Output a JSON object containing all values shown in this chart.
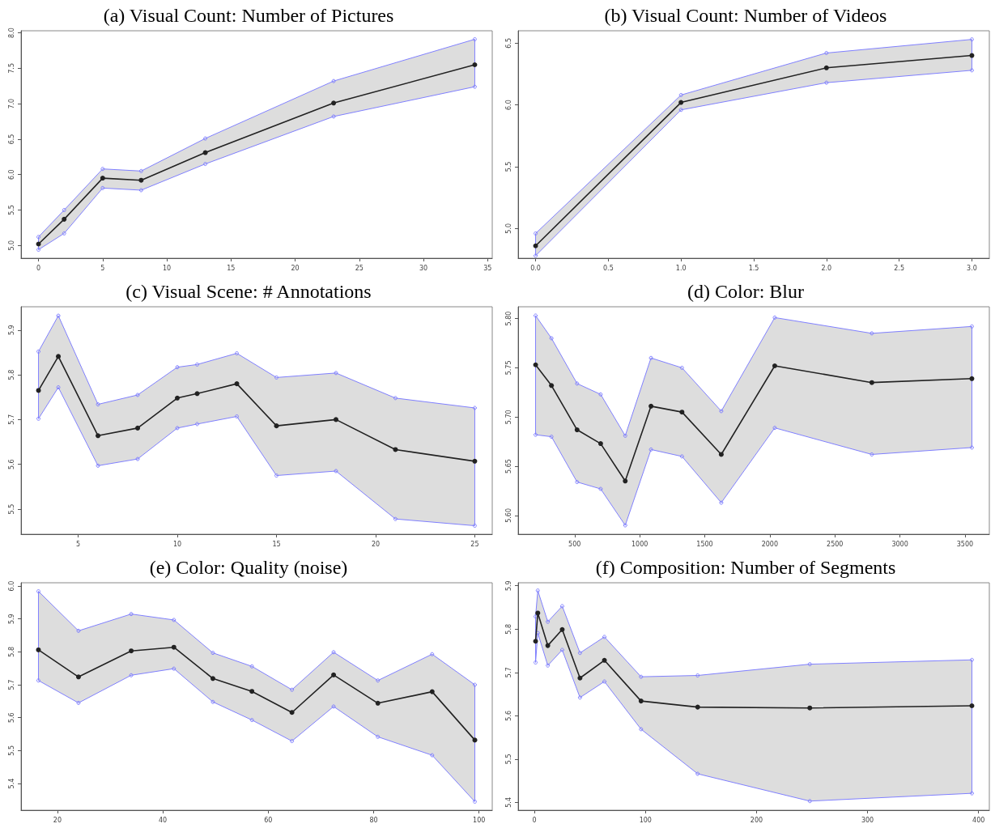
{
  "chart_data": [
    {
      "type": "line",
      "title": "(a) Visual Count: Number of Pictures",
      "x": [
        0,
        2,
        5,
        8,
        13,
        23,
        34
      ],
      "xlim": [
        -1.36,
        35.36
      ],
      "xticks": [
        0,
        5,
        10,
        15,
        20,
        25,
        30,
        35
      ],
      "ylim": [
        4.82,
        8.03
      ],
      "yticks": [
        {
          "value": 5,
          "label": "5.0"
        },
        {
          "value": 5.5,
          "label": "5.5"
        },
        {
          "value": 6,
          "label": "6.0"
        },
        {
          "value": 6.5,
          "label": "6.5"
        },
        {
          "value": 7,
          "label": "7.0"
        },
        {
          "value": 7.5,
          "label": "7.5"
        },
        {
          "value": 8,
          "label": "8.0"
        }
      ],
      "grid": false,
      "marker": "circle",
      "line_style": "solid",
      "series": [
        {
          "color": "#222222",
          "values": [
            5.02,
            5.37,
            5.95,
            5.92,
            6.31,
            7.01,
            7.55
          ],
          "lower": [
            4.94,
            5.17,
            5.81,
            5.78,
            6.15,
            6.82,
            7.24
          ],
          "upper": [
            5.12,
            5.5,
            6.08,
            6.05,
            6.51,
            7.32,
            7.91
          ]
        }
      ]
    },
    {
      "type": "line",
      "title": "(b) Visual Count: Number of Videos",
      "x": [
        0,
        1,
        2,
        3
      ],
      "xlim": [
        -0.12,
        3.12
      ],
      "xticks": [
        {
          "value": 0,
          "label": "0.0"
        },
        {
          "value": 0.5,
          "label": "0.5"
        },
        {
          "value": 1,
          "label": "1.0"
        },
        {
          "value": 1.5,
          "label": "1.5"
        },
        {
          "value": 2,
          "label": "2.0"
        },
        {
          "value": 2.5,
          "label": "2.5"
        },
        {
          "value": 3,
          "label": "3.0"
        }
      ],
      "ylim": [
        4.76,
        6.6
      ],
      "yticks": [
        {
          "value": 5,
          "label": "5.0"
        },
        {
          "value": 5.5,
          "label": "5.5"
        },
        {
          "value": 6,
          "label": "6.0"
        },
        {
          "value": 6.5,
          "label": "6.5"
        }
      ],
      "grid": false,
      "marker": "circle",
      "line_style": "solid",
      "series": [
        {
          "color": "#222222",
          "values": [
            4.86,
            6.02,
            6.3,
            6.4
          ],
          "lower": [
            4.78,
            5.96,
            6.18,
            6.28
          ],
          "upper": [
            4.96,
            6.08,
            6.42,
            6.53
          ]
        }
      ]
    },
    {
      "type": "line",
      "title": "(c) Visual Scene: # Annotations",
      "x": [
        3,
        4,
        6,
        8,
        10,
        11,
        13,
        15,
        18,
        21,
        25
      ],
      "xlim": [
        2.12,
        25.88
      ],
      "xticks": [
        5,
        10,
        15,
        20,
        25
      ],
      "ylim": [
        5.444,
        5.952
      ],
      "yticks": [
        5.5,
        5.6,
        5.7,
        5.8,
        5.9
      ],
      "grid": false,
      "marker": "circle",
      "line_style": "solid",
      "series": [
        {
          "color": "#222222",
          "values": [
            5.765,
            5.841,
            5.664,
            5.681,
            5.748,
            5.758,
            5.78,
            5.686,
            5.7,
            5.633,
            5.607
          ],
          "lower": [
            5.702,
            5.772,
            5.597,
            5.612,
            5.681,
            5.69,
            5.707,
            5.575,
            5.585,
            5.478,
            5.463
          ],
          "upper": [
            5.852,
            5.932,
            5.734,
            5.755,
            5.817,
            5.823,
            5.848,
            5.794,
            5.804,
            5.748,
            5.726
          ]
        }
      ]
    },
    {
      "type": "line",
      "title": "(d) Color: Blur",
      "x": [
        200,
        322,
        519,
        700,
        889,
        1087,
        1325,
        1627,
        2038,
        2784,
        3553
      ],
      "xlim": [
        66,
        3687
      ],
      "xticks": [
        500,
        1000,
        1500,
        2000,
        2500,
        3000,
        3500
      ],
      "ylim": [
        5.581,
        5.812
      ],
      "yticks": [
        {
          "value": 5.6,
          "label": "5.60"
        },
        {
          "value": 5.65,
          "label": "5.65"
        },
        {
          "value": 5.7,
          "label": "5.70"
        },
        {
          "value": 5.75,
          "label": "5.75"
        },
        {
          "value": 5.8,
          "label": "5.80"
        }
      ],
      "grid": false,
      "marker": "circle",
      "line_style": "solid",
      "series": [
        {
          "color": "#222222",
          "values": [
            5.753,
            5.732,
            5.687,
            5.673,
            5.635,
            5.711,
            5.705,
            5.662,
            5.752,
            5.735,
            5.739
          ],
          "lower": [
            5.682,
            5.68,
            5.634,
            5.627,
            5.59,
            5.667,
            5.66,
            5.613,
            5.689,
            5.662,
            5.669
          ],
          "upper": [
            5.803,
            5.78,
            5.734,
            5.723,
            5.681,
            5.76,
            5.75,
            5.706,
            5.801,
            5.785,
            5.792
          ]
        }
      ]
    },
    {
      "type": "line",
      "title": "(e) Color: Quality (noise)",
      "x": [
        16.4,
        24,
        34,
        42.1,
        49.5,
        56.9,
        64.5,
        72.4,
        80.8,
        91.1,
        99.2
      ],
      "xlim": [
        13.1,
        102.5
      ],
      "xticks": [
        20,
        40,
        60,
        80,
        100
      ],
      "ylim": [
        5.319,
        6.01
      ],
      "yticks": [
        5.4,
        5.5,
        5.6,
        5.7,
        5.8,
        5.9,
        {
          "value": 6,
          "label": "6.0"
        }
      ],
      "grid": false,
      "marker": "circle",
      "line_style": "solid",
      "series": [
        {
          "color": "#222222",
          "values": [
            5.806,
            5.724,
            5.803,
            5.814,
            5.719,
            5.68,
            5.616,
            5.73,
            5.644,
            5.679,
            5.532
          ],
          "lower": [
            5.713,
            5.645,
            5.729,
            5.749,
            5.648,
            5.593,
            5.529,
            5.634,
            5.542,
            5.486,
            5.345
          ],
          "upper": [
            5.984,
            5.864,
            5.915,
            5.897,
            5.797,
            5.756,
            5.685,
            5.799,
            5.713,
            5.793,
            5.7
          ]
        }
      ]
    },
    {
      "type": "line",
      "title": "(f) Composition: Number of Segments",
      "x": [
        1,
        3,
        12,
        25,
        41,
        63,
        96,
        147,
        248,
        394
      ],
      "xlim": [
        -14.7,
        409.7
      ],
      "xticks": [
        0,
        100,
        200,
        300,
        400
      ],
      "ylim": [
        5.382,
        5.907
      ],
      "yticks": [
        5.4,
        5.5,
        5.6,
        5.7,
        5.8,
        5.9
      ],
      "grid": false,
      "marker": "circle",
      "line_style": "solid",
      "series": [
        {
          "color": "#222222",
          "values": [
            5.772,
            5.837,
            5.762,
            5.799,
            5.687,
            5.728,
            5.634,
            5.62,
            5.618,
            5.623
          ],
          "lower": [
            5.723,
            5.791,
            5.716,
            5.752,
            5.642,
            5.679,
            5.569,
            5.466,
            5.403,
            5.421
          ],
          "upper": [
            5.829,
            5.889,
            5.817,
            5.853,
            5.745,
            5.782,
            5.69,
            5.693,
            5.719,
            5.729
          ]
        }
      ]
    }
  ]
}
